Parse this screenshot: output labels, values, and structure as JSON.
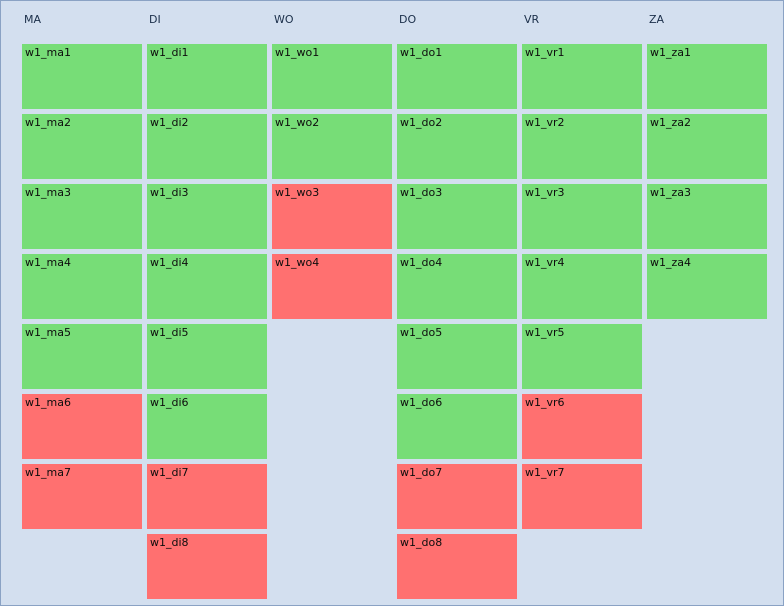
{
  "colors": {
    "ok": "#77dd77",
    "bad": "#ff7070",
    "background": "#d3dfef"
  },
  "days": [
    {
      "label": "MA",
      "slots": [
        {
          "label": "w1_ma1",
          "status": "ok"
        },
        {
          "label": "w1_ma2",
          "status": "ok"
        },
        {
          "label": "w1_ma3",
          "status": "ok"
        },
        {
          "label": "w1_ma4",
          "status": "ok"
        },
        {
          "label": "w1_ma5",
          "status": "ok"
        },
        {
          "label": "w1_ma6",
          "status": "bad"
        },
        {
          "label": "w1_ma7",
          "status": "bad"
        }
      ]
    },
    {
      "label": "DI",
      "slots": [
        {
          "label": "w1_di1",
          "status": "ok"
        },
        {
          "label": "w1_di2",
          "status": "ok"
        },
        {
          "label": "w1_di3",
          "status": "ok"
        },
        {
          "label": "w1_di4",
          "status": "ok"
        },
        {
          "label": "w1_di5",
          "status": "ok"
        },
        {
          "label": "w1_di6",
          "status": "ok"
        },
        {
          "label": "w1_di7",
          "status": "bad"
        },
        {
          "label": "w1_di8",
          "status": "bad"
        }
      ]
    },
    {
      "label": "WO",
      "slots": [
        {
          "label": "w1_wo1",
          "status": "ok"
        },
        {
          "label": "w1_wo2",
          "status": "ok"
        },
        {
          "label": "w1_wo3",
          "status": "bad"
        },
        {
          "label": "w1_wo4",
          "status": "bad"
        }
      ]
    },
    {
      "label": "DO",
      "slots": [
        {
          "label": "w1_do1",
          "status": "ok"
        },
        {
          "label": "w1_do2",
          "status": "ok"
        },
        {
          "label": "w1_do3",
          "status": "ok"
        },
        {
          "label": "w1_do4",
          "status": "ok"
        },
        {
          "label": "w1_do5",
          "status": "ok"
        },
        {
          "label": "w1_do6",
          "status": "ok"
        },
        {
          "label": "w1_do7",
          "status": "bad"
        },
        {
          "label": "w1_do8",
          "status": "bad"
        }
      ]
    },
    {
      "label": "VR",
      "slots": [
        {
          "label": "w1_vr1",
          "status": "ok"
        },
        {
          "label": "w1_vr2",
          "status": "ok"
        },
        {
          "label": "w1_vr3",
          "status": "ok"
        },
        {
          "label": "w1_vr4",
          "status": "ok"
        },
        {
          "label": "w1_vr5",
          "status": "ok"
        },
        {
          "label": "w1_vr6",
          "status": "bad"
        },
        {
          "label": "w1_vr7",
          "status": "bad"
        }
      ]
    },
    {
      "label": "ZA",
      "slots": [
        {
          "label": "w1_za1",
          "status": "ok"
        },
        {
          "label": "w1_za2",
          "status": "ok"
        },
        {
          "label": "w1_za3",
          "status": "ok"
        },
        {
          "label": "w1_za4",
          "status": "ok"
        }
      ]
    }
  ]
}
